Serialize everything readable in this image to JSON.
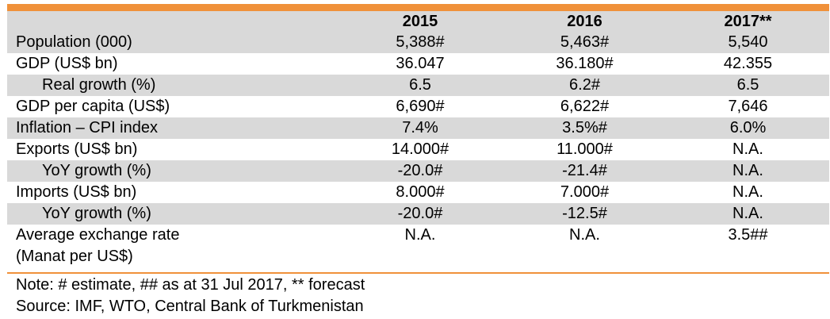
{
  "table": {
    "columns": [
      "",
      "2015",
      "2016",
      "2017**"
    ],
    "rows": [
      {
        "label": "Population (000)",
        "indent": false,
        "values": [
          "5,388#",
          "5,463#",
          "5,540"
        ]
      },
      {
        "label": "GDP (US$ bn)",
        "indent": false,
        "values": [
          "36.047",
          "36.180#",
          "42.355"
        ]
      },
      {
        "label": "Real growth (%)",
        "indent": true,
        "values": [
          "6.5",
          "6.2#",
          "6.5"
        ]
      },
      {
        "label": "GDP per capita (US$)",
        "indent": false,
        "values": [
          "6,690#",
          "6,622#",
          "7,646"
        ]
      },
      {
        "label": "Inflation – CPI index",
        "indent": false,
        "values": [
          "7.4%",
          "3.5%#",
          "6.0%"
        ]
      },
      {
        "label": "Exports (US$ bn)",
        "indent": false,
        "values": [
          "14.000#",
          "11.000#",
          "N.A."
        ]
      },
      {
        "label": "YoY growth (%)",
        "indent": true,
        "values": [
          "-20.0#",
          "-21.4#",
          "N.A."
        ]
      },
      {
        "label": "Imports (US$ bn)",
        "indent": false,
        "values": [
          "8.000#",
          "7.000#",
          "N.A."
        ]
      },
      {
        "label": "YoY growth (%)",
        "indent": true,
        "values": [
          "-20.0#",
          "-12.5#",
          "N.A."
        ]
      },
      {
        "label_lines": [
          "Average exchange rate",
          "(Manat per US$)"
        ],
        "indent": false,
        "values": [
          "N.A.",
          "N.A.",
          "3.5##"
        ]
      }
    ]
  },
  "notes": {
    "note": "Note: # estimate, ## as at 31 Jul 2017, ** forecast",
    "source": "Source: IMF, WTO, Central Bank of Turkmenistan"
  },
  "colors": {
    "accent": "#f0913a",
    "shade": "#d9d9d9"
  }
}
